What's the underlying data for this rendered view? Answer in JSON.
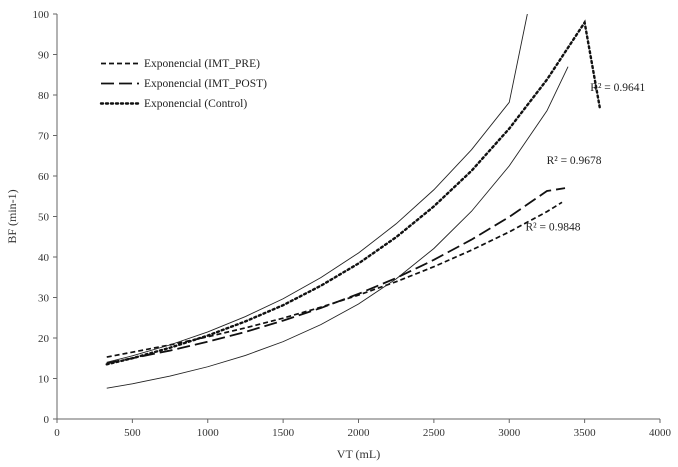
{
  "chart_data": {
    "type": "line",
    "xlabel": "VT (mL)",
    "ylabel": "BF (min-1)",
    "xlim": [
      0,
      4000
    ],
    "ylim": [
      0,
      100
    ],
    "x_ticks": [
      0,
      500,
      1000,
      1500,
      2000,
      2500,
      3000,
      3500,
      4000
    ],
    "y_ticks": [
      0,
      10,
      20,
      30,
      40,
      50,
      60,
      70,
      80,
      90,
      100
    ],
    "grid": false,
    "legend_position": "top-left",
    "series": [
      {
        "name": "Exponencial (IMT_PRE)",
        "style": "short-dash",
        "color": "#111111",
        "x": [
          330,
          500,
          750,
          1000,
          1250,
          1500,
          1750,
          2000,
          2250,
          2500,
          2750,
          3000,
          3250,
          3350
        ],
        "y": [
          15.3,
          16.5,
          18.3,
          20.3,
          22.5,
          24.9,
          27.6,
          30.6,
          33.9,
          37.6,
          41.7,
          46.2,
          51.2,
          53.5
        ]
      },
      {
        "name": "Exponencial (IMT_POST)",
        "style": "long-dash",
        "color": "#111111",
        "x": [
          330,
          500,
          750,
          1000,
          1250,
          1500,
          1750,
          2000,
          2250,
          2500,
          2750,
          3000,
          3250,
          3370
        ],
        "y": [
          13.8,
          15.0,
          16.9,
          19.1,
          21.5,
          24.3,
          27.4,
          30.9,
          34.8,
          39.3,
          44.3,
          49.9,
          56.3,
          57.0
        ]
      },
      {
        "name": "Exponencial (Control)",
        "style": "dotted",
        "color": "#111111",
        "x": [
          330,
          500,
          750,
          1000,
          1250,
          1500,
          1750,
          2000,
          2250,
          2500,
          2750,
          3000,
          3250,
          3500,
          3600
        ],
        "y": [
          13.5,
          15.0,
          17.6,
          20.6,
          24.1,
          28.1,
          32.9,
          38.4,
          44.9,
          52.5,
          61.3,
          71.7,
          83.8,
          97.9,
          77.0
        ]
      },
      {
        "name": "",
        "style": "solid-thin",
        "color": "#222222",
        "x": [
          330,
          500,
          750,
          1000,
          1250,
          1500,
          1750,
          2000,
          2250,
          2500,
          2750,
          3000,
          3120
        ],
        "y": [
          14.0,
          15.6,
          18.3,
          21.5,
          25.3,
          29.7,
          34.9,
          41.0,
          48.2,
          56.6,
          66.5,
          78.2,
          100
        ]
      },
      {
        "name": "",
        "style": "solid-thin",
        "color": "#222222",
        "x": [
          330,
          500,
          750,
          1000,
          1250,
          1500,
          1750,
          2000,
          2250,
          2500,
          2750,
          3000,
          3250,
          3390
        ],
        "y": [
          7.6,
          8.7,
          10.6,
          12.9,
          15.7,
          19.1,
          23.3,
          28.4,
          34.6,
          42.1,
          51.3,
          62.5,
          76.1,
          87.0
        ]
      }
    ],
    "annotations": [
      {
        "text": "R² = 0.9641",
        "x": 3720,
        "y": 82
      },
      {
        "text": "R² = 0.9678",
        "x": 3430,
        "y": 64
      },
      {
        "text": "R² = 0.9848",
        "x": 3290,
        "y": 47.5
      }
    ]
  }
}
